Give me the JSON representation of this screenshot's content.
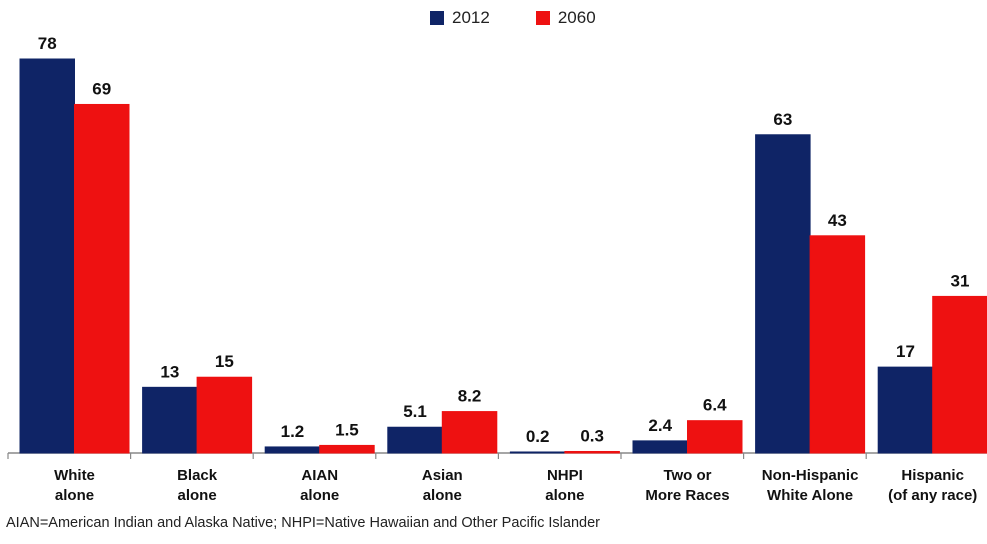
{
  "chart_data": {
    "type": "bar",
    "title": "",
    "xlabel": "",
    "ylabel": "",
    "ylim": [
      0,
      80
    ],
    "categories": [
      [
        "White",
        "alone"
      ],
      [
        "Black",
        "alone"
      ],
      [
        "AIAN",
        "alone"
      ],
      [
        "Asian",
        "alone"
      ],
      [
        "NHPI",
        "alone"
      ],
      [
        "Two or",
        "More Races"
      ],
      [
        "Non-Hispanic",
        "White Alone"
      ],
      [
        "Hispanic",
        "(of any race)"
      ]
    ],
    "series": [
      {
        "name": "2012",
        "color": "#0f2466",
        "values": [
          78,
          13,
          1.2,
          5.1,
          0.2,
          2.4,
          63,
          17
        ],
        "labels": [
          "78",
          "13",
          "1.2",
          "5.1",
          "0.2",
          "2.4",
          "63",
          "17"
        ]
      },
      {
        "name": "2060",
        "color": "#ee1111",
        "values": [
          69,
          15,
          1.5,
          8.2,
          0.3,
          6.4,
          43,
          31
        ],
        "labels": [
          "69",
          "15",
          "1.5",
          "8.2",
          "0.3",
          "6.4",
          "43",
          "31"
        ]
      }
    ],
    "legend": "top-center",
    "grid": false
  },
  "footnote": "AIAN=American Indian and Alaska Native; NHPI=Native Hawaiian and Other Pacific Islander"
}
